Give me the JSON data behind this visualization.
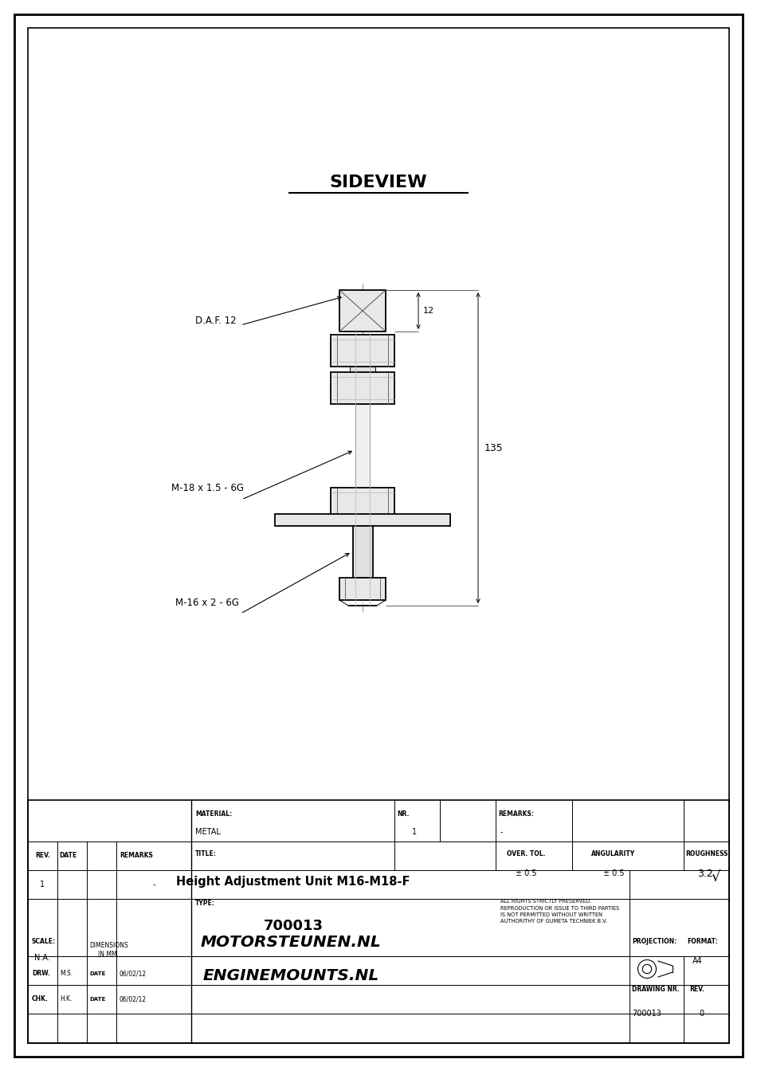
{
  "title": "SIDEVIEW",
  "bg_color": "#ffffff",
  "line_color": "#000000",
  "annotations": {
    "daf": "D.A.F. 12",
    "m18": "M-18 x 1.5 - 6G",
    "m16": "M-16 x 2 - 6G",
    "dim12": "12",
    "dim135": "135"
  },
  "footer": {
    "material_label": "MATERIAL:",
    "material_value": "METAL",
    "nr_label": "NR.",
    "nr_value": "1",
    "remarks_label": "REMARKS:",
    "remarks_value": "-",
    "title_label": "TITLE:",
    "title_value": "Height Adjustment Unit M16-M18-F",
    "type_label": "TYPE:",
    "type_value": "700013",
    "over_tol_label": "OVER. TOL.",
    "over_tol_value": "± 0.5",
    "angularity_label": "ANGULARITY",
    "angularity_value": "± 0.5",
    "roughness_label": "ROUGHNESS",
    "roughness_value": "3.2",
    "rights_text": "ALL RIGHTS STRICTLY PRESERVED.\nREPRODUCTION OR ISSUE TO THIRD PARTIES\nIS NOT PERMITTED WITHOUT WRITTEN\nAUTHORITHY OF GUMETA TECHNIEK B.V.",
    "scale_label": "SCALE:",
    "scale_value": "N.A.",
    "dim_label": "DIMENSIONS\nIN MM.",
    "company1": "MOTORSTEUNEN.NL",
    "company2": "ENGINEMOUNTS.NL",
    "projection_label": "PROJECTION:",
    "format_label": "FORMAT:",
    "format_value": "A4",
    "drw_label": "DRW.",
    "drw_value": "M.S.",
    "date_value1": "06/02/12",
    "chk_label": "CHK.",
    "chk_value": "H.K.",
    "date_value2": "06/02/12",
    "drawing_nr_label": "DRAWING NR.",
    "drawing_nr_value": "700013",
    "rev_label": "REV.",
    "rev_num": "0",
    "rev_row1": "1",
    "remarks_row1": "-"
  }
}
